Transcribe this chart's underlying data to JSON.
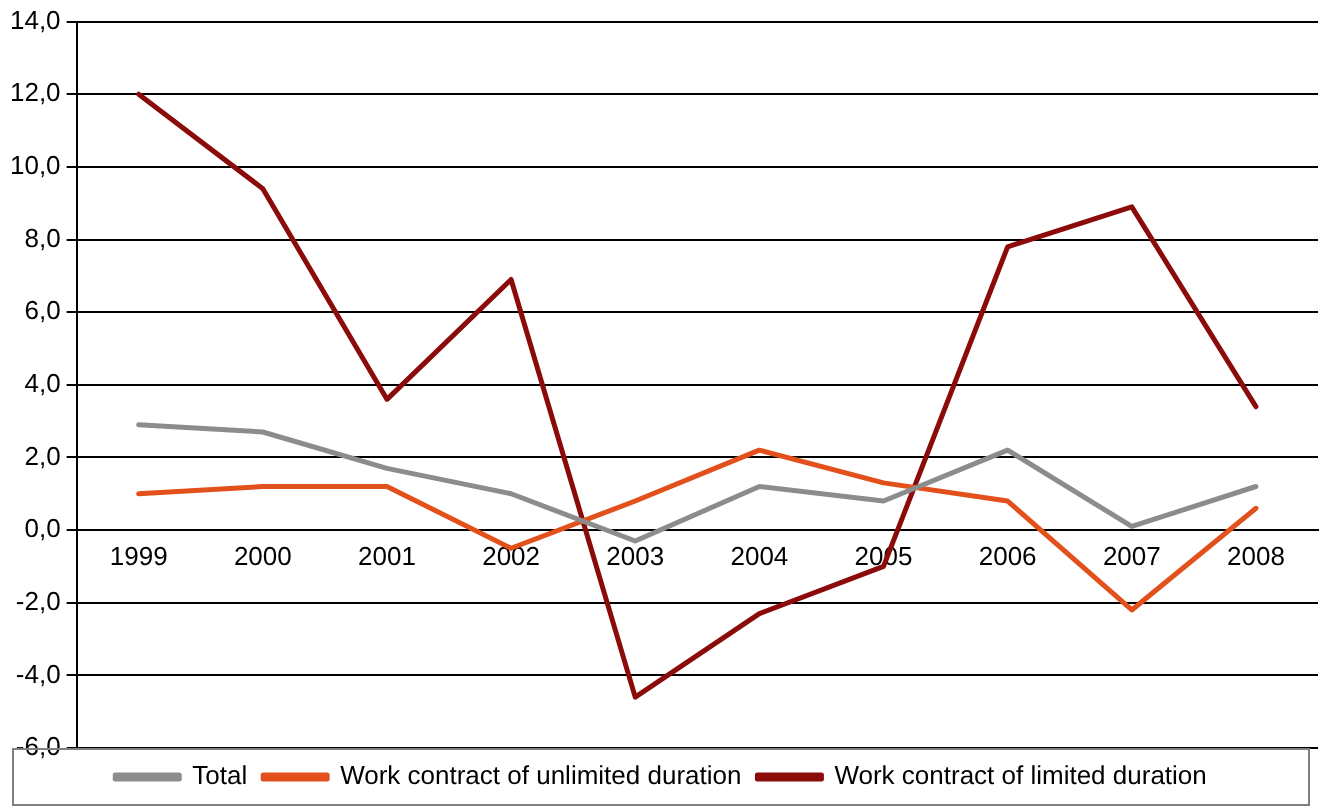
{
  "chart_data": {
    "type": "line",
    "categories": [
      "1999",
      "2000",
      "2001",
      "2002",
      "2003",
      "2004",
      "2005",
      "2006",
      "2007",
      "2008"
    ],
    "series": [
      {
        "name": "Total",
        "color": "#8c8c8c",
        "values": [
          2.9,
          2.7,
          1.7,
          1.0,
          -0.3,
          1.2,
          0.8,
          2.2,
          0.1,
          1.2
        ]
      },
      {
        "name": "Work contract of unlimited duration",
        "color": "#e2501c",
        "values": [
          1.0,
          1.2,
          1.2,
          -0.5,
          0.8,
          2.2,
          1.3,
          0.8,
          -2.2,
          0.6
        ]
      },
      {
        "name": "Work contract of limited duration",
        "color": "#8b0a0a",
        "values": [
          12.0,
          9.4,
          3.6,
          6.9,
          -4.6,
          -2.3,
          -1.0,
          7.8,
          8.9,
          3.4
        ]
      }
    ],
    "ylim": [
      -6,
      14
    ],
    "yticks": [
      {
        "value": -6,
        "label": "-6,0"
      },
      {
        "value": -4,
        "label": "-4,0"
      },
      {
        "value": -2,
        "label": "-2,0"
      },
      {
        "value": 0,
        "label": "0,0"
      },
      {
        "value": 2,
        "label": "2,0"
      },
      {
        "value": 4,
        "label": "4,0"
      },
      {
        "value": 6,
        "label": "6,0"
      },
      {
        "value": 8,
        "label": "8,0"
      },
      {
        "value": 10,
        "label": "10,0"
      },
      {
        "value": 12,
        "label": "12,0"
      },
      {
        "value": 14,
        "label": "14,0"
      }
    ],
    "grid": "y",
    "legend": "bottom",
    "marker": "none",
    "line_style": "solid"
  }
}
